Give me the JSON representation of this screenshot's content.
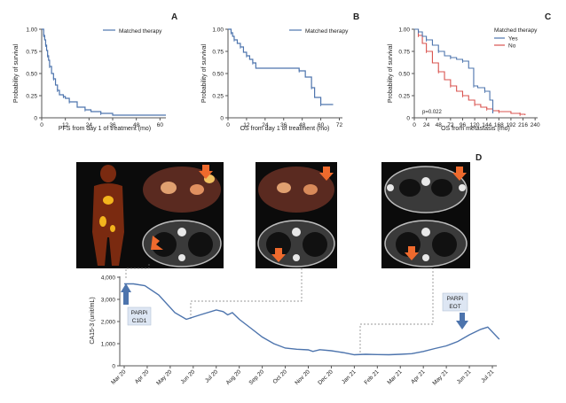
{
  "panels": {
    "A": {
      "letter": "A"
    },
    "B": {
      "letter": "B"
    },
    "C": {
      "letter": "C"
    },
    "D": {
      "letter": "D"
    }
  },
  "colors": {
    "blue": "#4d74ad",
    "red": "#d9534f",
    "orange": "#ef6a2d"
  },
  "chart_data": [
    {
      "id": "A",
      "type": "line",
      "style": "step",
      "title": "",
      "xlabel": "PFS from day 1 of treatment (mo)",
      "ylabel": "Probability of survival",
      "xlim": [
        0,
        63
      ],
      "ylim": [
        0,
        1
      ],
      "xticks": [
        "0",
        "12",
        "24",
        "36",
        "48",
        "60"
      ],
      "yticks": [
        "0",
        "0.25",
        "0.50",
        "0.75",
        "1.00"
      ],
      "legend": [
        "Matched therapy"
      ],
      "series": [
        {
          "name": "Matched therapy",
          "color": "#4d74ad",
          "x": [
            0,
            1,
            1.5,
            2,
            2.5,
            3,
            3.5,
            4,
            5,
            6,
            7,
            8,
            9,
            11,
            12,
            14,
            18,
            22,
            25,
            30,
            36,
            63
          ],
          "y": [
            1.0,
            0.93,
            0.88,
            0.82,
            0.76,
            0.7,
            0.65,
            0.58,
            0.5,
            0.44,
            0.37,
            0.31,
            0.26,
            0.24,
            0.22,
            0.18,
            0.12,
            0.09,
            0.07,
            0.05,
            0.03,
            0.03
          ]
        }
      ]
    },
    {
      "id": "B",
      "type": "line",
      "style": "step",
      "title": "",
      "xlabel": "OS from day 1 of treatment (mo)",
      "ylabel": "Probability of survival",
      "xlim": [
        0,
        74
      ],
      "ylim": [
        0,
        1
      ],
      "xticks": [
        "0",
        "12",
        "24",
        "36",
        "48",
        "60",
        "72"
      ],
      "yticks": [
        "0",
        "0.25",
        "0.50",
        "0.75",
        "1.00"
      ],
      "legend": [
        "Matched therapy"
      ],
      "series": [
        {
          "name": "Matched therapy",
          "color": "#4d74ad",
          "x": [
            0,
            2,
            3,
            4,
            6,
            8,
            10,
            12,
            14,
            16,
            18,
            46,
            50,
            54,
            56,
            60,
            68
          ],
          "y": [
            1.0,
            0.96,
            0.92,
            0.88,
            0.84,
            0.8,
            0.74,
            0.7,
            0.66,
            0.62,
            0.56,
            0.53,
            0.46,
            0.34,
            0.23,
            0.15,
            0.15
          ]
        }
      ]
    },
    {
      "id": "C",
      "type": "line",
      "style": "step",
      "title": "",
      "xlabel": "OS from metastasis (mo)",
      "ylabel": "Probability of survival",
      "xlim": [
        0,
        245
      ],
      "ylim": [
        0,
        1
      ],
      "xticks": [
        "0",
        "24",
        "48",
        "72",
        "96",
        "120",
        "144",
        "168",
        "192",
        "216",
        "240"
      ],
      "yticks": [
        "0",
        "0.25",
        "0.50",
        "0.75",
        "1.00"
      ],
      "legend_title": "Matched therapy",
      "legend": [
        "Yes",
        "No"
      ],
      "annotation": "p=0.022",
      "series": [
        {
          "name": "Yes",
          "color": "#4d74ad",
          "x": [
            0,
            8,
            16,
            24,
            36,
            48,
            60,
            72,
            84,
            96,
            108,
            118,
            126,
            140,
            150,
            156
          ],
          "y": [
            1.0,
            0.97,
            0.92,
            0.88,
            0.82,
            0.75,
            0.7,
            0.68,
            0.66,
            0.64,
            0.56,
            0.36,
            0.34,
            0.3,
            0.2,
            0.05
          ]
        },
        {
          "name": "No",
          "color": "#d9534f",
          "x": [
            0,
            8,
            16,
            24,
            36,
            48,
            60,
            72,
            84,
            96,
            108,
            120,
            132,
            144,
            156,
            168,
            192,
            210,
            220
          ],
          "y": [
            1.0,
            0.93,
            0.84,
            0.75,
            0.62,
            0.52,
            0.43,
            0.36,
            0.3,
            0.25,
            0.2,
            0.15,
            0.12,
            0.1,
            0.08,
            0.07,
            0.05,
            0.04,
            0.03
          ]
        }
      ]
    },
    {
      "id": "D",
      "type": "line",
      "title": "",
      "xlabel": "",
      "ylabel": "CA15-3 (unit/mL)",
      "ylim": [
        0,
        4000
      ],
      "yticks": [
        "0",
        "1,000",
        "2,000",
        "3,000",
        "4,000"
      ],
      "categories": [
        "Mar 20",
        "Apr 20",
        "May 20",
        "Jun 20",
        "Jul 20",
        "Aug 20",
        "Sep 20",
        "Oct 20",
        "Nov 20",
        "Dec 20",
        "Jan 21",
        "Feb 21",
        "Mar 21",
        "Apr 21",
        "May 21",
        "Jun 21",
        "Jul 21"
      ],
      "series": [
        {
          "name": "CA15-3",
          "color": "#4d74ad",
          "x": [
            0.0,
            0.4,
            0.9,
            1.5,
            2.2,
            2.7,
            3.3,
            4.0,
            4.3,
            4.5,
            4.7,
            5.0,
            5.5,
            6.0,
            6.5,
            7.0,
            7.5,
            8.0,
            8.2,
            8.5,
            9.0,
            9.5,
            10.0,
            10.5,
            11.0,
            11.5,
            12.0,
            12.5,
            13.0,
            13.5,
            14.0,
            14.5,
            15.0,
            15.5,
            15.8,
            16.3
          ],
          "y": [
            3700,
            3700,
            3620,
            3200,
            2400,
            2100,
            2300,
            2520,
            2450,
            2300,
            2400,
            2100,
            1700,
            1300,
            1000,
            800,
            750,
            720,
            650,
            730,
            680,
            600,
            500,
            520,
            510,
            500,
            520,
            550,
            650,
            780,
            900,
            1100,
            1400,
            1650,
            1750,
            1200
          ]
        }
      ],
      "annotations": [
        {
          "label_line1": "PARPi",
          "label_line2": "C1D1",
          "at": "Mar 20"
        },
        {
          "label_line1": "PARPi",
          "label_line2": "EOT",
          "at": "Jul 21"
        }
      ]
    }
  ]
}
